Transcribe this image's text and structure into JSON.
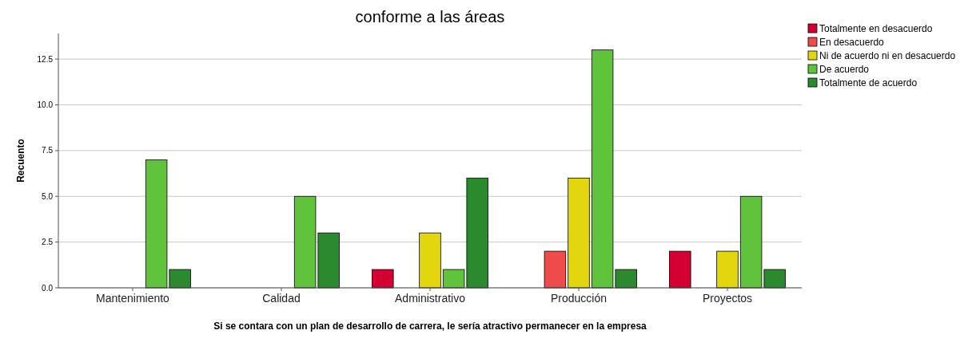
{
  "chart_data": {
    "type": "bar",
    "title": "conforme a las áreas",
    "xlabel": "Si se contara con un plan de desarrollo de carrera, le sería atractivo permanecer en la empresa",
    "ylabel": "Recuento",
    "categories": [
      "Mantenimiento",
      "Calidad",
      "Administrativo",
      "Producción",
      "Proyectos"
    ],
    "series": [
      {
        "name": "Totalmente en desacuerdo",
        "color": "#d50032",
        "values": [
          null,
          null,
          1,
          null,
          2
        ]
      },
      {
        "name": "En desacuerdo",
        "color": "#ef4b4a",
        "values": [
          null,
          null,
          null,
          2,
          null
        ]
      },
      {
        "name": "Ni de acuerdo ni en desacuerdo",
        "color": "#e2d70e",
        "values": [
          null,
          null,
          3,
          6,
          2
        ]
      },
      {
        "name": "De acuerdo",
        "color": "#5fc43b",
        "values": [
          7,
          5,
          1,
          13,
          5
        ]
      },
      {
        "name": "Totalmente de acuerdo",
        "color": "#2b8a2e",
        "values": [
          1,
          3,
          6,
          1,
          1
        ]
      }
    ],
    "ylim": [
      0,
      13.9
    ],
    "yticks": [
      {
        "value": 0,
        "label": "0.0"
      },
      {
        "value": 2.5,
        "label": "2.5"
      },
      {
        "value": 5,
        "label": "5.0"
      },
      {
        "value": 7.5,
        "label": "7.5"
      },
      {
        "value": 10,
        "label": "10.0"
      },
      {
        "value": 12.5,
        "label": "12.5"
      }
    ],
    "grid": "y",
    "legend": "top right"
  }
}
